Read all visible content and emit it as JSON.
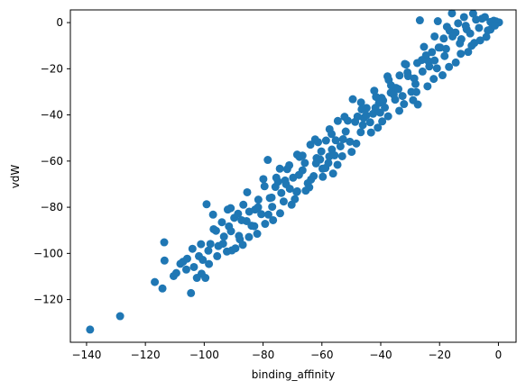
{
  "chart_data": {
    "type": "scatter",
    "xlabel": "binding_affinity",
    "ylabel": "vdW",
    "xlim": [
      -145.5,
      6.0
    ],
    "ylim": [
      -138.5,
      5.5
    ],
    "x_ticks": [
      -140,
      -120,
      -100,
      -80,
      -60,
      -40,
      -20,
      0
    ],
    "y_ticks": [
      -120,
      -100,
      -80,
      -60,
      -40,
      -20,
      0
    ],
    "x_tick_labels": [
      "−140",
      "−120",
      "−100",
      "−80",
      "−60",
      "−40",
      "−20",
      "0"
    ],
    "y_tick_labels": [
      "−120",
      "−100",
      "−80",
      "−60",
      "−40",
      "−20",
      "0"
    ],
    "grid": false,
    "marker_color": "#1f77b4",
    "series": [
      {
        "points": [
          [
            -138.8,
            -133.0
          ],
          [
            -128.6,
            -127.2
          ],
          [
            -116.8,
            -112.4
          ],
          [
            -114.2,
            -115.2
          ],
          [
            -113.5,
            -103.1
          ],
          [
            -113.6,
            -95.2
          ],
          [
            -110.4,
            -109.8
          ],
          [
            -109.5,
            -108.5
          ],
          [
            -108.1,
            -104.5
          ],
          [
            -107.2,
            -103.6
          ],
          [
            -106.1,
            -107.0
          ],
          [
            -105.8,
            -102.3
          ],
          [
            -104.5,
            -117.2
          ],
          [
            -104.0,
            -98.0
          ],
          [
            -103.5,
            -105.9
          ],
          [
            -102.5,
            -110.6
          ],
          [
            -101.8,
            -101.2
          ],
          [
            -101.1,
            -96.0
          ],
          [
            -100.5,
            -102.8
          ],
          [
            -99.6,
            -110.6
          ],
          [
            -98.4,
            -104.6
          ],
          [
            -99.2,
            -78.7
          ],
          [
            -97.9,
            -95.9
          ],
          [
            -97.0,
            -83.2
          ],
          [
            -96.0,
            -90.2
          ],
          [
            -95.2,
            -96.8
          ],
          [
            -94.0,
            -86.5
          ],
          [
            -93.3,
            -92.7
          ],
          [
            -92.0,
            -81.0
          ],
          [
            -91.6,
            -88.3
          ],
          [
            -90.6,
            -98.7
          ],
          [
            -89.8,
            -84.6
          ],
          [
            -88.5,
            -82.8
          ],
          [
            -87.9,
            -93.9
          ],
          [
            -86.7,
            -78.9
          ],
          [
            -85.6,
            -86.0
          ],
          [
            -84.7,
            -81.9
          ],
          [
            -83.9,
            -88.0
          ],
          [
            -82.7,
            -81.0
          ],
          [
            -81.6,
            -76.7
          ],
          [
            -80.6,
            -83.0
          ],
          [
            -79.5,
            -70.9
          ],
          [
            -78.4,
            -59.5
          ],
          [
            -77.7,
            -76.0
          ],
          [
            -76.9,
            -79.8
          ],
          [
            -75.8,
            -71.2
          ],
          [
            -74.9,
            -68.9
          ],
          [
            -73.8,
            -73.8
          ],
          [
            -72.5,
            -68.4
          ],
          [
            -71.8,
            -63.5
          ],
          [
            -70.9,
            -72.0
          ],
          [
            -69.8,
            -67.2
          ],
          [
            -68.6,
            -73.4
          ],
          [
            -67.6,
            -58.2
          ],
          [
            -66.6,
            -64.0
          ],
          [
            -65.8,
            -60.8
          ],
          [
            -64.8,
            -69.6
          ],
          [
            -63.9,
            -52.9
          ],
          [
            -62.8,
            -66.5
          ],
          [
            -61.8,
            -58.7
          ],
          [
            -60.6,
            -59.3
          ],
          [
            -59.8,
            -63.3
          ],
          [
            -58.6,
            -51.1
          ],
          [
            -57.5,
            -58.0
          ],
          [
            -56.6,
            -55.0
          ],
          [
            -55.7,
            -57.5
          ],
          [
            -54.6,
            -42.6
          ],
          [
            -53.7,
            -53.6
          ],
          [
            -52.8,
            -50.5
          ],
          [
            -51.9,
            -47.2
          ],
          [
            -50.5,
            -51.6
          ],
          [
            -49.5,
            -33.2
          ],
          [
            -48.7,
            -43.0
          ],
          [
            -47.9,
            -40.7
          ],
          [
            -46.8,
            -47.5
          ],
          [
            -45.8,
            -41.3
          ],
          [
            -44.8,
            -37.0
          ],
          [
            -43.6,
            -43.2
          ],
          [
            -42.6,
            -39.5
          ],
          [
            -41.8,
            -36.9
          ],
          [
            -40.6,
            -34.8
          ],
          [
            -39.7,
            -32.6
          ],
          [
            -38.6,
            -36.8
          ],
          [
            -37.7,
            -23.3
          ],
          [
            -36.6,
            -30.4
          ],
          [
            -35.6,
            -31.2
          ],
          [
            -34.8,
            -28.3
          ],
          [
            -33.6,
            -22.9
          ],
          [
            -32.6,
            -31.8
          ],
          [
            -31.8,
            -17.9
          ],
          [
            -30.7,
            -23.2
          ],
          [
            -29.6,
            -30.0
          ],
          [
            -28.6,
            -24.2
          ],
          [
            -27.6,
            -17.5
          ],
          [
            -26.7,
            1.0
          ],
          [
            -25.8,
            -21.2
          ],
          [
            -24.6,
            -14.2
          ],
          [
            -23.7,
            -16.8
          ],
          [
            -22.6,
            -12.8
          ],
          [
            -21.7,
            -16.4
          ],
          [
            -20.6,
            0.6
          ],
          [
            -19.8,
            -10.8
          ],
          [
            -18.6,
            -6.9
          ],
          [
            -17.8,
            -11.4
          ],
          [
            -16.6,
            -3.5
          ],
          [
            -15.8,
            4.0
          ],
          [
            -14.6,
            -4.3
          ],
          [
            -13.7,
            -0.3
          ],
          [
            -12.6,
            -7.2
          ],
          [
            -11.7,
            2.4
          ],
          [
            -10.8,
            -2.9
          ],
          [
            -9.6,
            -4.7
          ],
          [
            -8.6,
            3.9
          ],
          [
            -7.6,
            1.3
          ],
          [
            -6.6,
            -2.3
          ],
          [
            -5.6,
            1.7
          ],
          [
            -4.6,
            2.4
          ],
          [
            -3.6,
            -3.4
          ],
          [
            -2.7,
            0.3
          ],
          [
            -1.6,
            0.8
          ],
          [
            -0.8,
            0.5
          ],
          [
            0.2,
            0.1
          ],
          [
            -41.0,
            -45.5
          ],
          [
            -39.5,
            -42.8
          ],
          [
            -27.4,
            -35.5
          ],
          [
            -56.2,
            -65.4
          ],
          [
            -65.5,
            -72.8
          ],
          [
            -70.3,
            -78.9
          ],
          [
            -76.6,
            -85.6
          ],
          [
            -82.0,
            -91.5
          ],
          [
            -86.9,
            -96.3
          ],
          [
            -89.4,
            -97.8
          ],
          [
            -92.3,
            -99.2
          ],
          [
            -95.6,
            -101.2
          ],
          [
            -98.6,
            -98.8
          ],
          [
            -100.9,
            -108.8
          ],
          [
            -96.8,
            -89.5
          ],
          [
            -91.0,
            -80.4
          ],
          [
            -85.4,
            -73.5
          ],
          [
            -79.9,
            -67.8
          ],
          [
            -74.3,
            -63.3
          ],
          [
            -68.4,
            -57.2
          ],
          [
            -62.3,
            -50.6
          ],
          [
            -57.4,
            -46.2
          ],
          [
            -52.3,
            -40.8
          ],
          [
            -46.7,
            -34.6
          ],
          [
            -42.2,
            -29.5
          ],
          [
            -37.3,
            -24.8
          ],
          [
            -31.4,
            -18.2
          ],
          [
            -25.3,
            -10.5
          ],
          [
            -21.7,
            -6.0
          ],
          [
            -17.5,
            -1.8
          ],
          [
            -33.7,
            -38.2
          ],
          [
            -29.0,
            -33.6
          ],
          [
            -24.1,
            -27.6
          ],
          [
            -19.0,
            -22.8
          ],
          [
            -14.5,
            -17.3
          ],
          [
            -10.3,
            -12.7
          ],
          [
            -6.2,
            -7.7
          ],
          [
            -2.7,
            -3.0
          ],
          [
            -49.9,
            -56.0
          ],
          [
            -54.7,
            -61.6
          ],
          [
            -59.7,
            -66.8
          ],
          [
            -64.3,
            -71.4
          ],
          [
            -69.2,
            -76.5
          ],
          [
            -74.2,
            -82.6
          ],
          [
            -79.3,
            -87.2
          ],
          [
            -84.8,
            -92.9
          ],
          [
            -75.5,
            -67.2
          ],
          [
            -71.1,
            -61.8
          ],
          [
            -66.6,
            -57.6
          ],
          [
            -61.3,
            -51.8
          ],
          [
            -56.7,
            -48.3
          ],
          [
            -51.2,
            -42.5
          ],
          [
            -46.5,
            -37.6
          ],
          [
            -41.6,
            -32.2
          ],
          [
            -36.5,
            -27.2
          ],
          [
            -30.9,
            -21.6
          ],
          [
            -26.0,
            -16.2
          ],
          [
            -20.3,
            -10.8
          ],
          [
            -15.6,
            -6.0
          ],
          [
            -11.1,
            -1.4
          ],
          [
            -8.2,
            -8.8
          ],
          [
            -12.8,
            -13.5
          ],
          [
            -16.8,
            -19.2
          ],
          [
            -22.0,
            -24.4
          ],
          [
            -27.9,
            -30.1
          ],
          [
            -32.1,
            -35.3
          ],
          [
            -37.5,
            -40.6
          ],
          [
            -43.3,
            -47.6
          ],
          [
            -48.3,
            -52.4
          ],
          [
            -53.1,
            -57.9
          ],
          [
            -58.8,
            -63.0
          ],
          [
            -63.7,
            -68.0
          ],
          [
            -68.4,
            -73.1
          ],
          [
            -73.0,
            -77.5
          ],
          [
            -78.2,
            -83.2
          ],
          [
            -83.0,
            -88.2
          ],
          [
            -88.2,
            -92.4
          ],
          [
            -93.6,
            -95.8
          ],
          [
            -60.2,
            -55.8
          ],
          [
            -55.3,
            -51.0
          ],
          [
            -44.9,
            -40.2
          ],
          [
            -39.2,
            -33.8
          ],
          [
            -34.0,
            -28.8
          ],
          [
            -23.5,
            -19.0
          ],
          [
            -18.3,
            -14.5
          ],
          [
            -13.1,
            -9.0
          ],
          [
            -62.0,
            -61.0
          ],
          [
            -67.8,
            -66.0
          ],
          [
            -72.2,
            -70.0
          ],
          [
            -77.1,
            -75.8
          ],
          [
            -81.7,
            -80.0
          ],
          [
            -87.3,
            -85.6
          ],
          [
            -90.9,
            -90.4
          ],
          [
            -46.1,
            -44.4
          ],
          [
            -40.2,
            -39.0
          ],
          [
            -35.1,
            -33.4
          ],
          [
            -28.2,
            -26.6
          ],
          [
            -20.9,
            -19.8
          ],
          [
            -4.1,
            -6.2
          ],
          [
            -1.2,
            -1.3
          ],
          [
            -9.1,
            -10.0
          ],
          [
            -57.8,
            -60.8
          ]
        ]
      }
    ]
  }
}
